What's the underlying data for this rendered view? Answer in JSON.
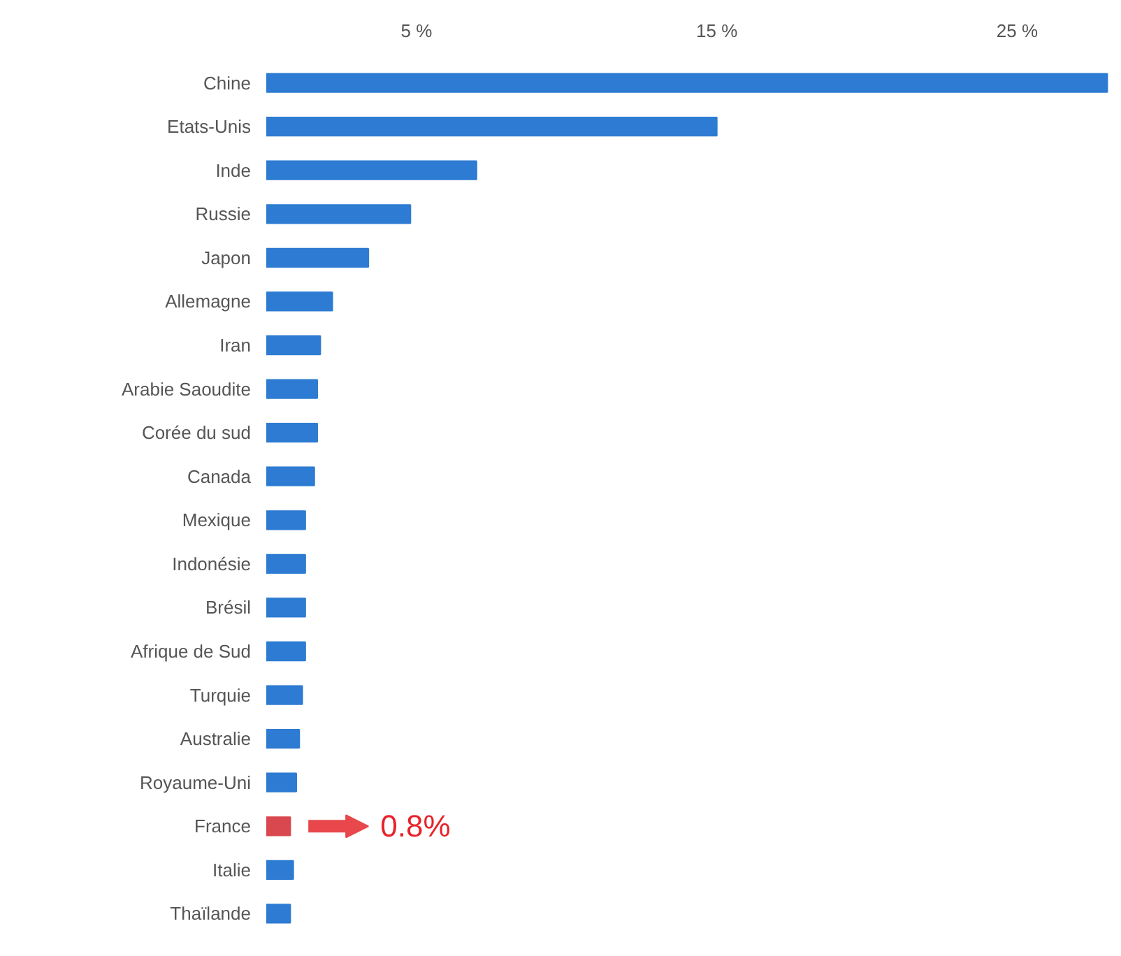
{
  "chart_data": {
    "type": "bar",
    "orientation": "horizontal",
    "categories": [
      "Chine",
      "Etats-Unis",
      "Inde",
      "Russie",
      "Japon",
      "Allemagne",
      "Iran",
      "Arabie Saoudite",
      "Corée du sud",
      "Canada",
      "Mexique",
      "Indonésie",
      "Brésil",
      "Afrique de Sud",
      "Turquie",
      "Australie",
      "Royaume-Uni",
      "France",
      "Italie",
      "Thaïlande"
    ],
    "values": [
      28,
      15,
      7,
      4.8,
      3.4,
      2.2,
      1.8,
      1.7,
      1.7,
      1.6,
      1.3,
      1.3,
      1.3,
      1.3,
      1.2,
      1.1,
      1.0,
      0.8,
      0.9,
      0.8
    ],
    "colors": [
      "#2d7bd2",
      "#2d7bd2",
      "#2d7bd2",
      "#2d7bd2",
      "#2d7bd2",
      "#2d7bd2",
      "#2d7bd2",
      "#2d7bd2",
      "#2d7bd2",
      "#2d7bd2",
      "#2d7bd2",
      "#2d7bd2",
      "#2d7bd2",
      "#2d7bd2",
      "#2d7bd2",
      "#2d7bd2",
      "#2d7bd2",
      "#d9474f",
      "#2d7bd2",
      "#2d7bd2"
    ],
    "xlim": [
      0,
      28.2
    ],
    "xticks": [
      {
        "value": 5,
        "label": "5 %"
      },
      {
        "value": 15,
        "label": "15 %"
      },
      {
        "value": 25,
        "label": "25 %"
      }
    ],
    "grid": false,
    "annotations": [
      {
        "text": "0.8%",
        "x": 0.8,
        "y": "France"
      }
    ]
  }
}
